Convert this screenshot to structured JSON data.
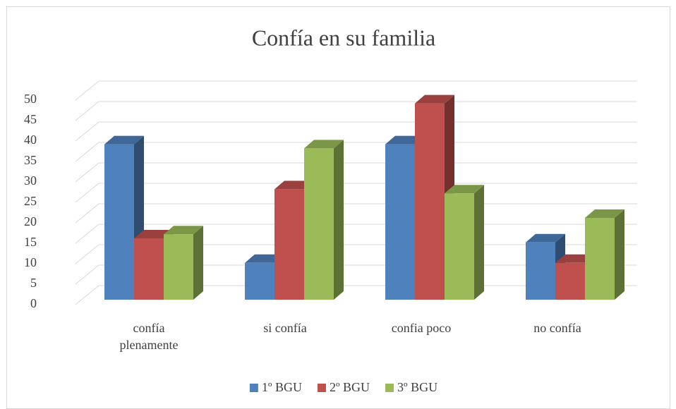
{
  "chart_data": {
    "type": "bar3d",
    "title": "Confía en su familia",
    "categories": [
      "confía plenamente",
      "si confía",
      "confia poco",
      "no confía"
    ],
    "series": [
      {
        "name": "1º BGU",
        "color": "#4f81bd",
        "values": [
          38,
          9,
          38,
          14
        ]
      },
      {
        "name": "2º BGU",
        "color": "#c0504d",
        "values": [
          15,
          27,
          48,
          9
        ]
      },
      {
        "name": "3º BGU",
        "color": "#9bbb59",
        "values": [
          16,
          37,
          26,
          20
        ]
      }
    ],
    "ylim": [
      0,
      50
    ],
    "yticks": [
      0,
      5,
      10,
      15,
      20,
      25,
      30,
      35,
      40,
      45,
      50
    ],
    "grid": true,
    "legend": "bottom"
  }
}
